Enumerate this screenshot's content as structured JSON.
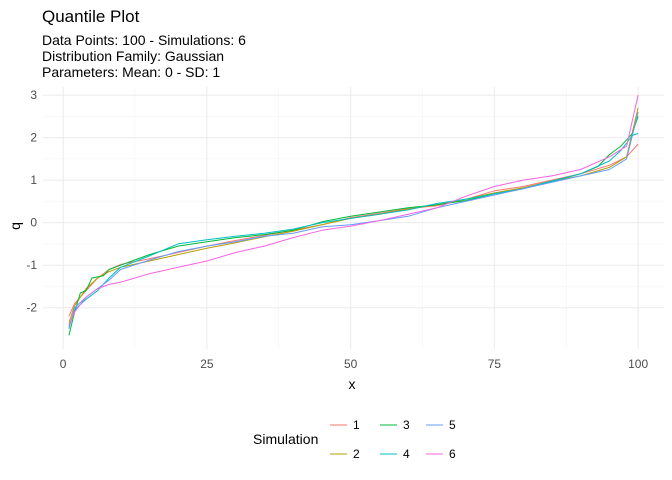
{
  "chart_data": {
    "type": "line",
    "title": "Quantile Plot",
    "subtitle": [
      "Data Points: 100 - Simulations: 6",
      "Distribution Family: Gaussian",
      "Parameters: Mean: 0 - SD: 1"
    ],
    "xlabel": "x",
    "ylabel": "q",
    "xlim": [
      -3.5,
      104.5
    ],
    "ylim": [
      -2.97,
      3.19
    ],
    "x_ticks": [
      0,
      25,
      50,
      75,
      100
    ],
    "y_ticks": [
      -2,
      -1,
      0,
      1,
      2,
      3
    ],
    "grid": true,
    "legend": {
      "title": "Simulation",
      "position": "bottom",
      "ncol": 3
    },
    "series_colors": [
      "#F8766D",
      "#B79F00",
      "#00BA38",
      "#00BFC4",
      "#619CFF",
      "#F564E3"
    ],
    "series": [
      {
        "name": "1",
        "points": [
          [
            1,
            -2.2
          ],
          [
            2,
            -1.9
          ],
          [
            4,
            -1.6
          ],
          [
            6,
            -1.3
          ],
          [
            8,
            -1.1
          ],
          [
            10,
            -0.98
          ],
          [
            15,
            -0.85
          ],
          [
            20,
            -0.7
          ],
          [
            25,
            -0.55
          ],
          [
            30,
            -0.42
          ],
          [
            35,
            -0.3
          ],
          [
            40,
            -0.18
          ],
          [
            45,
            -0.05
          ],
          [
            50,
            0.12
          ],
          [
            55,
            0.22
          ],
          [
            60,
            0.33
          ],
          [
            65,
            0.4
          ],
          [
            70,
            0.55
          ],
          [
            75,
            0.75
          ],
          [
            80,
            0.85
          ],
          [
            85,
            1.0
          ],
          [
            90,
            1.15
          ],
          [
            95,
            1.35
          ],
          [
            98,
            1.55
          ],
          [
            100,
            1.85
          ]
        ]
      },
      {
        "name": "2",
        "points": [
          [
            1,
            -2.35
          ],
          [
            2,
            -1.95
          ],
          [
            4,
            -1.55
          ],
          [
            6,
            -1.3
          ],
          [
            8,
            -1.15
          ],
          [
            10,
            -1.05
          ],
          [
            15,
            -0.9
          ],
          [
            20,
            -0.75
          ],
          [
            25,
            -0.6
          ],
          [
            30,
            -0.47
          ],
          [
            35,
            -0.33
          ],
          [
            40,
            -0.2
          ],
          [
            45,
            -0.05
          ],
          [
            50,
            0.1
          ],
          [
            55,
            0.2
          ],
          [
            60,
            0.32
          ],
          [
            65,
            0.42
          ],
          [
            70,
            0.55
          ],
          [
            75,
            0.7
          ],
          [
            80,
            0.82
          ],
          [
            85,
            0.98
          ],
          [
            90,
            1.1
          ],
          [
            95,
            1.3
          ],
          [
            98,
            1.55
          ],
          [
            100,
            2.7
          ]
        ]
      },
      {
        "name": "3",
        "points": [
          [
            1,
            -2.65
          ],
          [
            2,
            -2.1
          ],
          [
            3,
            -1.65
          ],
          [
            4,
            -1.6
          ],
          [
            5,
            -1.3
          ],
          [
            7,
            -1.25
          ],
          [
            8,
            -1.1
          ],
          [
            10,
            -1.0
          ],
          [
            15,
            -0.75
          ],
          [
            20,
            -0.55
          ],
          [
            25,
            -0.45
          ],
          [
            30,
            -0.35
          ],
          [
            35,
            -0.28
          ],
          [
            40,
            -0.18
          ],
          [
            45,
            0.02
          ],
          [
            50,
            0.15
          ],
          [
            55,
            0.25
          ],
          [
            60,
            0.35
          ],
          [
            65,
            0.42
          ],
          [
            70,
            0.52
          ],
          [
            75,
            0.68
          ],
          [
            80,
            0.8
          ],
          [
            85,
            0.97
          ],
          [
            90,
            1.15
          ],
          [
            93,
            1.32
          ],
          [
            95,
            1.6
          ],
          [
            97,
            1.8
          ],
          [
            99,
            2.1
          ],
          [
            100,
            2.5
          ]
        ]
      },
      {
        "name": "4",
        "points": [
          [
            1,
            -2.45
          ],
          [
            2,
            -2.05
          ],
          [
            4,
            -1.8
          ],
          [
            6,
            -1.6
          ],
          [
            8,
            -1.3
          ],
          [
            10,
            -1.05
          ],
          [
            15,
            -0.78
          ],
          [
            20,
            -0.5
          ],
          [
            25,
            -0.4
          ],
          [
            30,
            -0.32
          ],
          [
            35,
            -0.25
          ],
          [
            40,
            -0.15
          ],
          [
            45,
            0.0
          ],
          [
            50,
            0.1
          ],
          [
            55,
            0.2
          ],
          [
            60,
            0.3
          ],
          [
            65,
            0.45
          ],
          [
            70,
            0.55
          ],
          [
            75,
            0.68
          ],
          [
            80,
            0.8
          ],
          [
            85,
            0.98
          ],
          [
            90,
            1.15
          ],
          [
            95,
            1.45
          ],
          [
            97,
            1.7
          ],
          [
            99,
            2.05
          ],
          [
            100,
            2.1
          ]
        ]
      },
      {
        "name": "5",
        "points": [
          [
            1,
            -2.5
          ],
          [
            2,
            -2.0
          ],
          [
            4,
            -1.75
          ],
          [
            6,
            -1.55
          ],
          [
            8,
            -1.35
          ],
          [
            10,
            -1.1
          ],
          [
            15,
            -0.88
          ],
          [
            20,
            -0.68
          ],
          [
            25,
            -0.55
          ],
          [
            30,
            -0.45
          ],
          [
            35,
            -0.32
          ],
          [
            40,
            -0.25
          ],
          [
            45,
            -0.1
          ],
          [
            50,
            -0.05
          ],
          [
            55,
            0.05
          ],
          [
            60,
            0.15
          ],
          [
            65,
            0.35
          ],
          [
            70,
            0.5
          ],
          [
            75,
            0.65
          ],
          [
            80,
            0.8
          ],
          [
            85,
            0.95
          ],
          [
            90,
            1.1
          ],
          [
            95,
            1.25
          ],
          [
            98,
            1.5
          ],
          [
            100,
            2.6
          ]
        ]
      },
      {
        "name": "6",
        "points": [
          [
            1,
            -2.4
          ],
          [
            2,
            -2.1
          ],
          [
            4,
            -1.75
          ],
          [
            6,
            -1.55
          ],
          [
            8,
            -1.45
          ],
          [
            10,
            -1.4
          ],
          [
            15,
            -1.2
          ],
          [
            20,
            -1.05
          ],
          [
            25,
            -0.9
          ],
          [
            30,
            -0.7
          ],
          [
            35,
            -0.55
          ],
          [
            40,
            -0.35
          ],
          [
            45,
            -0.18
          ],
          [
            50,
            -0.08
          ],
          [
            55,
            0.05
          ],
          [
            60,
            0.2
          ],
          [
            65,
            0.35
          ],
          [
            70,
            0.62
          ],
          [
            75,
            0.85
          ],
          [
            80,
            1.0
          ],
          [
            85,
            1.1
          ],
          [
            90,
            1.25
          ],
          [
            95,
            1.55
          ],
          [
            98,
            1.8
          ],
          [
            100,
            3.0
          ]
        ]
      }
    ]
  }
}
